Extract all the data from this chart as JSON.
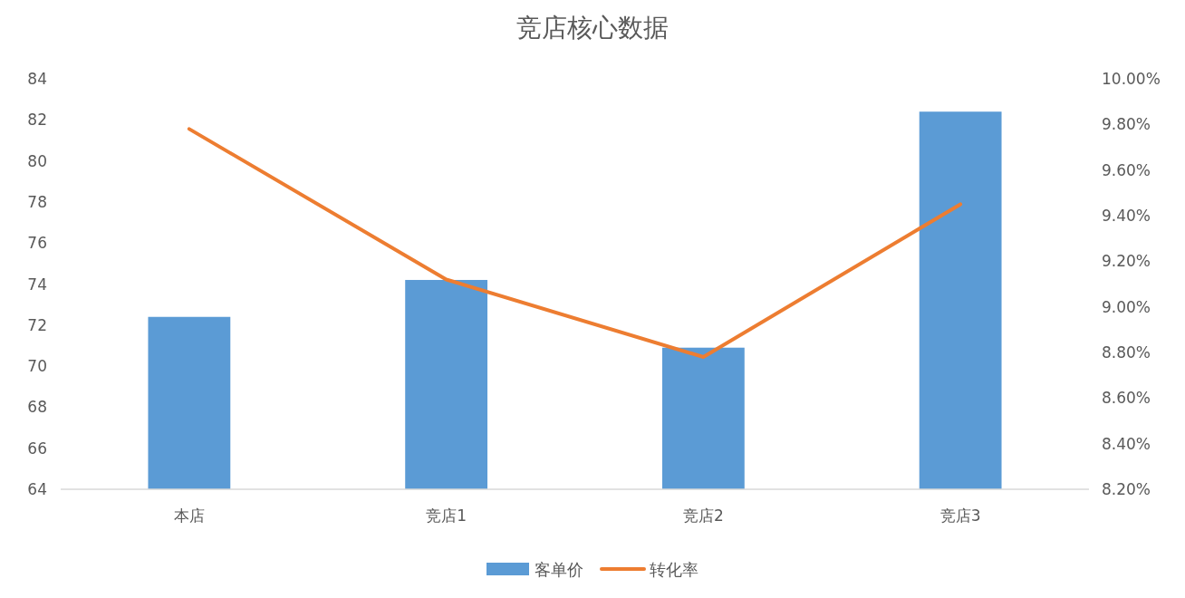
{
  "chart_data": {
    "type": "bar",
    "title": "竞店核心数据",
    "categories": [
      "本店",
      "竞店1",
      "竞店2",
      "竞店3"
    ],
    "series": [
      {
        "name": "客单价",
        "color": "#5b9bd5",
        "values": [
          72.4,
          74.2,
          70.9,
          82.4
        ]
      },
      {
        "name": "转化率",
        "type": "line",
        "axis": "y2",
        "color": "#ed7d31",
        "values": [
          9.78,
          9.12,
          8.78,
          9.45
        ]
      }
    ],
    "ylim": [
      64,
      84
    ],
    "yticks": [
      64,
      66,
      68,
      70,
      72,
      74,
      76,
      78,
      80,
      82,
      84
    ],
    "y2lim": [
      8.2,
      10.0
    ],
    "y2ticks": [
      {
        "value": 8.2,
        "label": "8.20%"
      },
      {
        "value": 8.4,
        "label": "8.40%"
      },
      {
        "value": 8.6,
        "label": "8.60%"
      },
      {
        "value": 8.8,
        "label": "8.80%"
      },
      {
        "value": 9.0,
        "label": "9.00%"
      },
      {
        "value": 9.2,
        "label": "9.20%"
      },
      {
        "value": 9.4,
        "label": "9.40%"
      },
      {
        "value": 9.6,
        "label": "9.60%"
      },
      {
        "value": 9.8,
        "label": "9.80%"
      },
      {
        "value": 10.0,
        "label": "10.00%"
      }
    ],
    "legend": "bottom"
  }
}
